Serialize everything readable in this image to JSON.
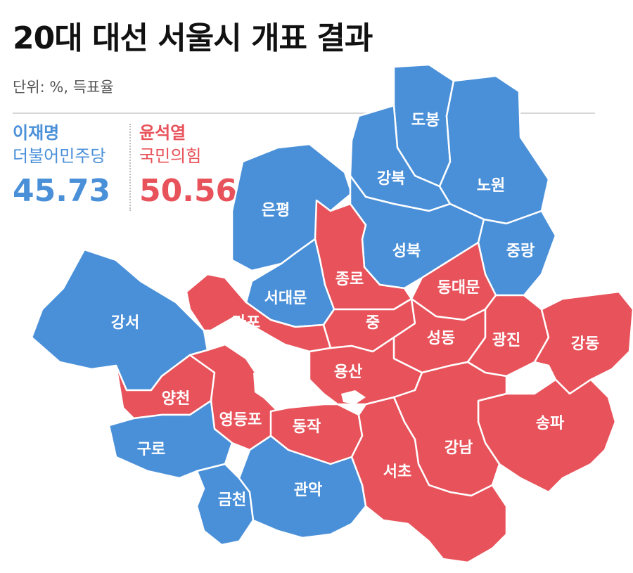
{
  "title": "20대 대선 서울시 개표 결과",
  "unit_note": "단위: %, 득표율",
  "colors": {
    "blue": "#4a90d9",
    "red": "#e8525a"
  },
  "candidates": [
    {
      "name": "이재명",
      "party": "더불어민주당",
      "percent": "45.73",
      "color": "#4a90d9"
    },
    {
      "name": "윤석열",
      "party": "국민의힘",
      "percent": "50.56",
      "color": "#e8525a"
    }
  ],
  "districts": [
    {
      "id": "dobong",
      "name": "도봉",
      "winner": "blue"
    },
    {
      "id": "gangbuk",
      "name": "강북",
      "winner": "blue"
    },
    {
      "id": "nowon",
      "name": "노원",
      "winner": "blue"
    },
    {
      "id": "eunpyeong",
      "name": "은평",
      "winner": "blue"
    },
    {
      "id": "seongbuk",
      "name": "성북",
      "winner": "blue"
    },
    {
      "id": "jungnang",
      "name": "중랑",
      "winner": "blue"
    },
    {
      "id": "jongno",
      "name": "종로",
      "winner": "red"
    },
    {
      "id": "seodaemun",
      "name": "서대문",
      "winner": "blue"
    },
    {
      "id": "dongdaemun",
      "name": "동대문",
      "winner": "red"
    },
    {
      "id": "gangseo",
      "name": "강서",
      "winner": "blue"
    },
    {
      "id": "mapo",
      "name": "마포",
      "winner": "red"
    },
    {
      "id": "jung",
      "name": "중",
      "winner": "red"
    },
    {
      "id": "seongdong",
      "name": "성동",
      "winner": "red"
    },
    {
      "id": "gwangjin",
      "name": "광진",
      "winner": "red"
    },
    {
      "id": "gangdong",
      "name": "강동",
      "winner": "red"
    },
    {
      "id": "yongsan",
      "name": "용산",
      "winner": "red"
    },
    {
      "id": "yangcheon",
      "name": "양천",
      "winner": "red"
    },
    {
      "id": "yeongdeungpo",
      "name": "영등포",
      "winner": "red"
    },
    {
      "id": "dongjak",
      "name": "동작",
      "winner": "red"
    },
    {
      "id": "songpa",
      "name": "송파",
      "winner": "red"
    },
    {
      "id": "guro",
      "name": "구로",
      "winner": "blue"
    },
    {
      "id": "gangnam",
      "name": "강남",
      "winner": "red"
    },
    {
      "id": "seocho",
      "name": "서초",
      "winner": "red"
    },
    {
      "id": "geumcheon",
      "name": "금천",
      "winner": "blue"
    },
    {
      "id": "gwanak",
      "name": "관악",
      "winner": "blue"
    }
  ]
}
